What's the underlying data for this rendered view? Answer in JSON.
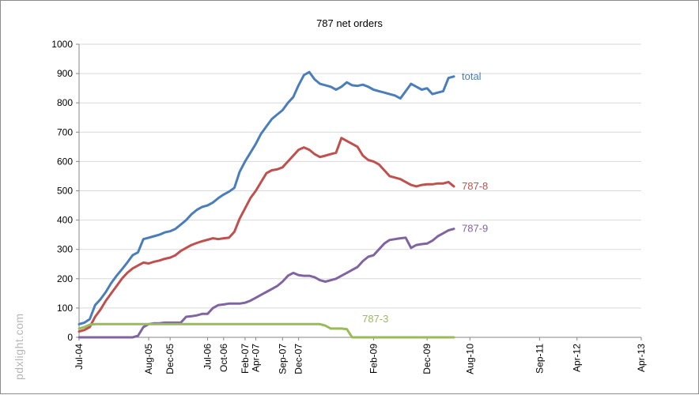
{
  "chart_data": {
    "type": "line",
    "title": "787 net orders",
    "xlabel": "",
    "ylabel": "",
    "ylim": [
      0,
      1000
    ],
    "yticks": [
      0,
      100,
      200,
      300,
      400,
      500,
      600,
      700,
      800,
      900,
      1000
    ],
    "x_range": [
      0,
      105
    ],
    "x_tick_labels": [
      {
        "label": "Jul-04",
        "x": 0
      },
      {
        "label": "Aug-05",
        "x": 13
      },
      {
        "label": "Dec-05",
        "x": 17
      },
      {
        "label": "Jul-06",
        "x": 24
      },
      {
        "label": "Oct-06",
        "x": 27
      },
      {
        "label": "Feb-07",
        "x": 31
      },
      {
        "label": "Apr-07",
        "x": 33
      },
      {
        "label": "Sep-07",
        "x": 38
      },
      {
        "label": "Dec-07",
        "x": 41
      },
      {
        "label": "Feb-09",
        "x": 55
      },
      {
        "label": "Dec-09",
        "x": 65
      },
      {
        "label": "Aug-10",
        "x": 73
      },
      {
        "label": "Sep-11",
        "x": 86
      },
      {
        "label": "Apr-12",
        "x": 93
      },
      {
        "label": "Apr-13",
        "x": 105
      }
    ],
    "grid": "horizontal",
    "legend": "labels at right end of each line",
    "series": [
      {
        "name": "total",
        "color": "#4a7ebb",
        "points": [
          [
            0,
            45
          ],
          [
            1,
            50
          ],
          [
            2,
            62
          ],
          [
            3,
            110
          ],
          [
            4,
            130
          ],
          [
            5,
            155
          ],
          [
            6,
            185
          ],
          [
            7,
            210
          ],
          [
            8,
            232
          ],
          [
            9,
            255
          ],
          [
            10,
            280
          ],
          [
            11,
            290
          ],
          [
            12,
            335
          ],
          [
            13,
            340
          ],
          [
            14,
            345
          ],
          [
            15,
            350
          ],
          [
            16,
            358
          ],
          [
            17,
            362
          ],
          [
            18,
            370
          ],
          [
            19,
            385
          ],
          [
            20,
            400
          ],
          [
            21,
            420
          ],
          [
            22,
            435
          ],
          [
            23,
            445
          ],
          [
            24,
            450
          ],
          [
            25,
            460
          ],
          [
            26,
            475
          ],
          [
            27,
            487
          ],
          [
            28,
            497
          ],
          [
            29,
            510
          ],
          [
            30,
            565
          ],
          [
            31,
            600
          ],
          [
            32,
            630
          ],
          [
            33,
            660
          ],
          [
            34,
            695
          ],
          [
            35,
            720
          ],
          [
            36,
            745
          ],
          [
            37,
            760
          ],
          [
            38,
            775
          ],
          [
            39,
            800
          ],
          [
            40,
            820
          ],
          [
            41,
            860
          ],
          [
            42,
            895
          ],
          [
            43,
            905
          ],
          [
            44,
            880
          ],
          [
            45,
            865
          ],
          [
            46,
            860
          ],
          [
            47,
            855
          ],
          [
            48,
            845
          ],
          [
            49,
            855
          ],
          [
            50,
            870
          ],
          [
            51,
            860
          ],
          [
            52,
            858
          ],
          [
            53,
            862
          ],
          [
            54,
            855
          ],
          [
            55,
            845
          ],
          [
            56,
            840
          ],
          [
            57,
            835
          ],
          [
            58,
            830
          ],
          [
            59,
            825
          ],
          [
            60,
            815
          ],
          [
            61,
            840
          ],
          [
            62,
            865
          ],
          [
            63,
            855
          ],
          [
            64,
            845
          ],
          [
            65,
            850
          ],
          [
            66,
            830
          ],
          [
            67,
            835
          ],
          [
            68,
            840
          ],
          [
            69,
            885
          ],
          [
            70,
            890
          ]
        ]
      },
      {
        "name": "787-8",
        "color": "#c0504d",
        "points": [
          [
            0,
            20
          ],
          [
            1,
            25
          ],
          [
            2,
            35
          ],
          [
            3,
            70
          ],
          [
            4,
            95
          ],
          [
            5,
            125
          ],
          [
            6,
            150
          ],
          [
            7,
            175
          ],
          [
            8,
            200
          ],
          [
            9,
            220
          ],
          [
            10,
            235
          ],
          [
            11,
            245
          ],
          [
            12,
            255
          ],
          [
            13,
            252
          ],
          [
            14,
            258
          ],
          [
            15,
            262
          ],
          [
            16,
            268
          ],
          [
            17,
            272
          ],
          [
            18,
            280
          ],
          [
            19,
            295
          ],
          [
            20,
            305
          ],
          [
            21,
            315
          ],
          [
            22,
            322
          ],
          [
            23,
            328
          ],
          [
            24,
            333
          ],
          [
            25,
            338
          ],
          [
            26,
            335
          ],
          [
            27,
            338
          ],
          [
            28,
            340
          ],
          [
            29,
            360
          ],
          [
            30,
            405
          ],
          [
            31,
            440
          ],
          [
            32,
            475
          ],
          [
            33,
            500
          ],
          [
            34,
            530
          ],
          [
            35,
            560
          ],
          [
            36,
            570
          ],
          [
            37,
            573
          ],
          [
            38,
            580
          ],
          [
            39,
            600
          ],
          [
            40,
            620
          ],
          [
            41,
            640
          ],
          [
            42,
            648
          ],
          [
            43,
            640
          ],
          [
            44,
            625
          ],
          [
            45,
            615
          ],
          [
            46,
            620
          ],
          [
            47,
            625
          ],
          [
            48,
            630
          ],
          [
            49,
            680
          ],
          [
            50,
            670
          ],
          [
            51,
            660
          ],
          [
            52,
            650
          ],
          [
            53,
            620
          ],
          [
            54,
            605
          ],
          [
            55,
            600
          ],
          [
            56,
            590
          ],
          [
            57,
            570
          ],
          [
            58,
            550
          ],
          [
            59,
            545
          ],
          [
            60,
            540
          ],
          [
            61,
            530
          ],
          [
            62,
            520
          ],
          [
            63,
            515
          ],
          [
            64,
            520
          ],
          [
            65,
            522
          ],
          [
            66,
            522
          ],
          [
            67,
            525
          ],
          [
            68,
            525
          ],
          [
            69,
            530
          ],
          [
            70,
            515
          ]
        ]
      },
      {
        "name": "787-9",
        "color": "#8064a2",
        "points": [
          [
            0,
            0
          ],
          [
            5,
            0
          ],
          [
            10,
            0
          ],
          [
            11,
            5
          ],
          [
            12,
            35
          ],
          [
            13,
            45
          ],
          [
            14,
            48
          ],
          [
            15,
            48
          ],
          [
            16,
            50
          ],
          [
            17,
            50
          ],
          [
            18,
            50
          ],
          [
            19,
            50
          ],
          [
            20,
            70
          ],
          [
            21,
            72
          ],
          [
            22,
            75
          ],
          [
            23,
            80
          ],
          [
            24,
            80
          ],
          [
            25,
            100
          ],
          [
            26,
            110
          ],
          [
            27,
            112
          ],
          [
            28,
            115
          ],
          [
            29,
            115
          ],
          [
            30,
            115
          ],
          [
            31,
            118
          ],
          [
            32,
            125
          ],
          [
            33,
            135
          ],
          [
            34,
            145
          ],
          [
            35,
            155
          ],
          [
            36,
            165
          ],
          [
            37,
            175
          ],
          [
            38,
            190
          ],
          [
            39,
            210
          ],
          [
            40,
            220
          ],
          [
            41,
            212
          ],
          [
            42,
            210
          ],
          [
            43,
            210
          ],
          [
            44,
            205
          ],
          [
            45,
            195
          ],
          [
            46,
            190
          ],
          [
            47,
            195
          ],
          [
            48,
            200
          ],
          [
            49,
            210
          ],
          [
            50,
            220
          ],
          [
            51,
            230
          ],
          [
            52,
            240
          ],
          [
            53,
            260
          ],
          [
            54,
            275
          ],
          [
            55,
            280
          ],
          [
            56,
            300
          ],
          [
            57,
            320
          ],
          [
            58,
            332
          ],
          [
            59,
            335
          ],
          [
            60,
            338
          ],
          [
            61,
            340
          ],
          [
            62,
            305
          ],
          [
            63,
            315
          ],
          [
            64,
            318
          ],
          [
            65,
            320
          ],
          [
            66,
            330
          ],
          [
            67,
            345
          ],
          [
            68,
            355
          ],
          [
            69,
            365
          ],
          [
            70,
            370
          ]
        ]
      },
      {
        "name": "787-3",
        "color": "#9bbb59",
        "points": [
          [
            0,
            30
          ],
          [
            1,
            35
          ],
          [
            2,
            43
          ],
          [
            3,
            45
          ],
          [
            10,
            45
          ],
          [
            20,
            45
          ],
          [
            30,
            45
          ],
          [
            40,
            45
          ],
          [
            45,
            45
          ],
          [
            46,
            40
          ],
          [
            47,
            30
          ],
          [
            48,
            30
          ],
          [
            49,
            30
          ],
          [
            50,
            28
          ],
          [
            51,
            0
          ],
          [
            60,
            0
          ],
          [
            70,
            0
          ]
        ]
      }
    ]
  },
  "watermark": "pdxlight.com",
  "colors": {
    "gridline": "#d9d9d9",
    "axis": "#868686"
  }
}
